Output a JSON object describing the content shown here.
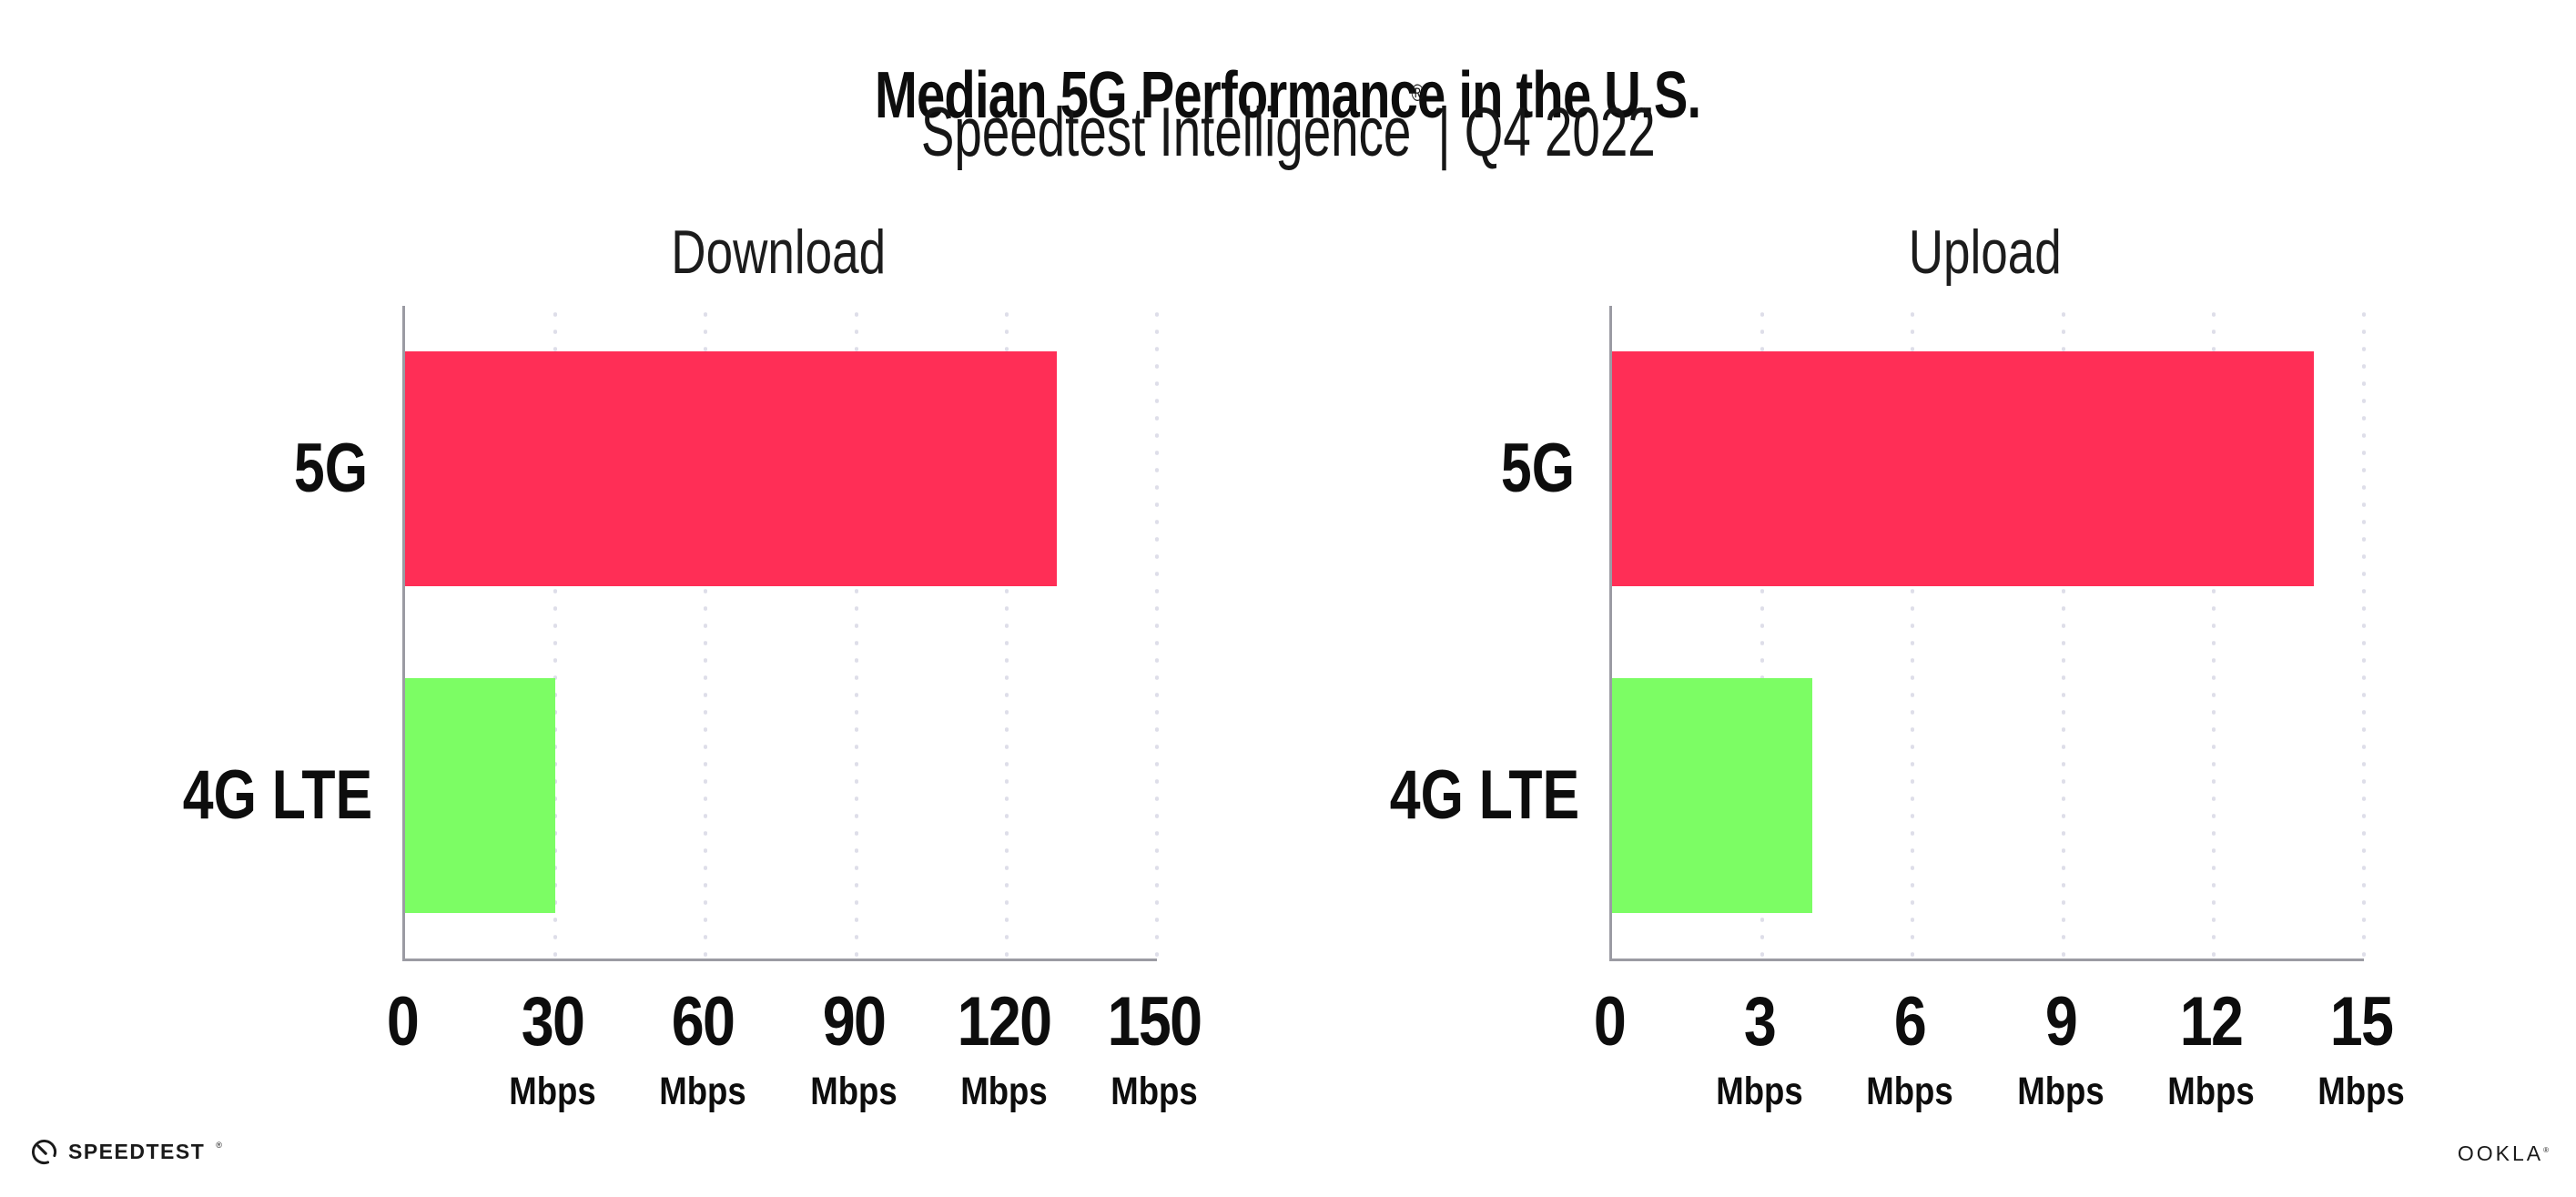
{
  "page": {
    "background": "#ffffff"
  },
  "header": {
    "title": "Median 5G Performance in the U.S.",
    "subtitle_brand": "Speedtest Intelligence",
    "subtitle_mark": "®",
    "subtitle_rest": " | Q4 2022"
  },
  "footer": {
    "speedtest_label": "SPEEDTEST",
    "speedtest_mark": "®",
    "speedtest_icon": "speedometer-gauge-icon",
    "ookla_label": "OOKLA",
    "ookla_mark": "®"
  },
  "colors": {
    "bar_5g": "#FF2E56",
    "bar_4g_lte": "#7CFD64",
    "gridline": "#DEDEE9",
    "axis_spine": "#9B9BA3",
    "text": "#111111"
  },
  "chart_data": [
    {
      "type": "bar",
      "orientation": "horizontal",
      "title": "Download",
      "categories": [
        "5G",
        "4G LTE"
      ],
      "values": [
        130,
        30
      ],
      "unit": "Mbps",
      "xlim": [
        0,
        150
      ],
      "xticks": [
        {
          "label": "0",
          "unit": ""
        },
        {
          "label": "30",
          "unit": "Mbps"
        },
        {
          "label": "60",
          "unit": "Mbps"
        },
        {
          "label": "90",
          "unit": "Mbps"
        },
        {
          "label": "120",
          "unit": "Mbps"
        },
        {
          "label": "150",
          "unit": "Mbps"
        }
      ],
      "bar_colors": [
        "#FF2E56",
        "#7CFD64"
      ],
      "grid": "dotted-vertical",
      "legend": "none"
    },
    {
      "type": "bar",
      "orientation": "horizontal",
      "title": "Upload",
      "categories": [
        "5G",
        "4G LTE"
      ],
      "values": [
        14,
        4
      ],
      "unit": "Mbps",
      "xlim": [
        0,
        15
      ],
      "xticks": [
        {
          "label": "0",
          "unit": ""
        },
        {
          "label": "3",
          "unit": "Mbps"
        },
        {
          "label": "6",
          "unit": "Mbps"
        },
        {
          "label": "9",
          "unit": "Mbps"
        },
        {
          "label": "12",
          "unit": "Mbps"
        },
        {
          "label": "15",
          "unit": "Mbps"
        }
      ],
      "bar_colors": [
        "#FF2E56",
        "#7CFD64"
      ],
      "grid": "dotted-vertical",
      "legend": "none"
    }
  ]
}
